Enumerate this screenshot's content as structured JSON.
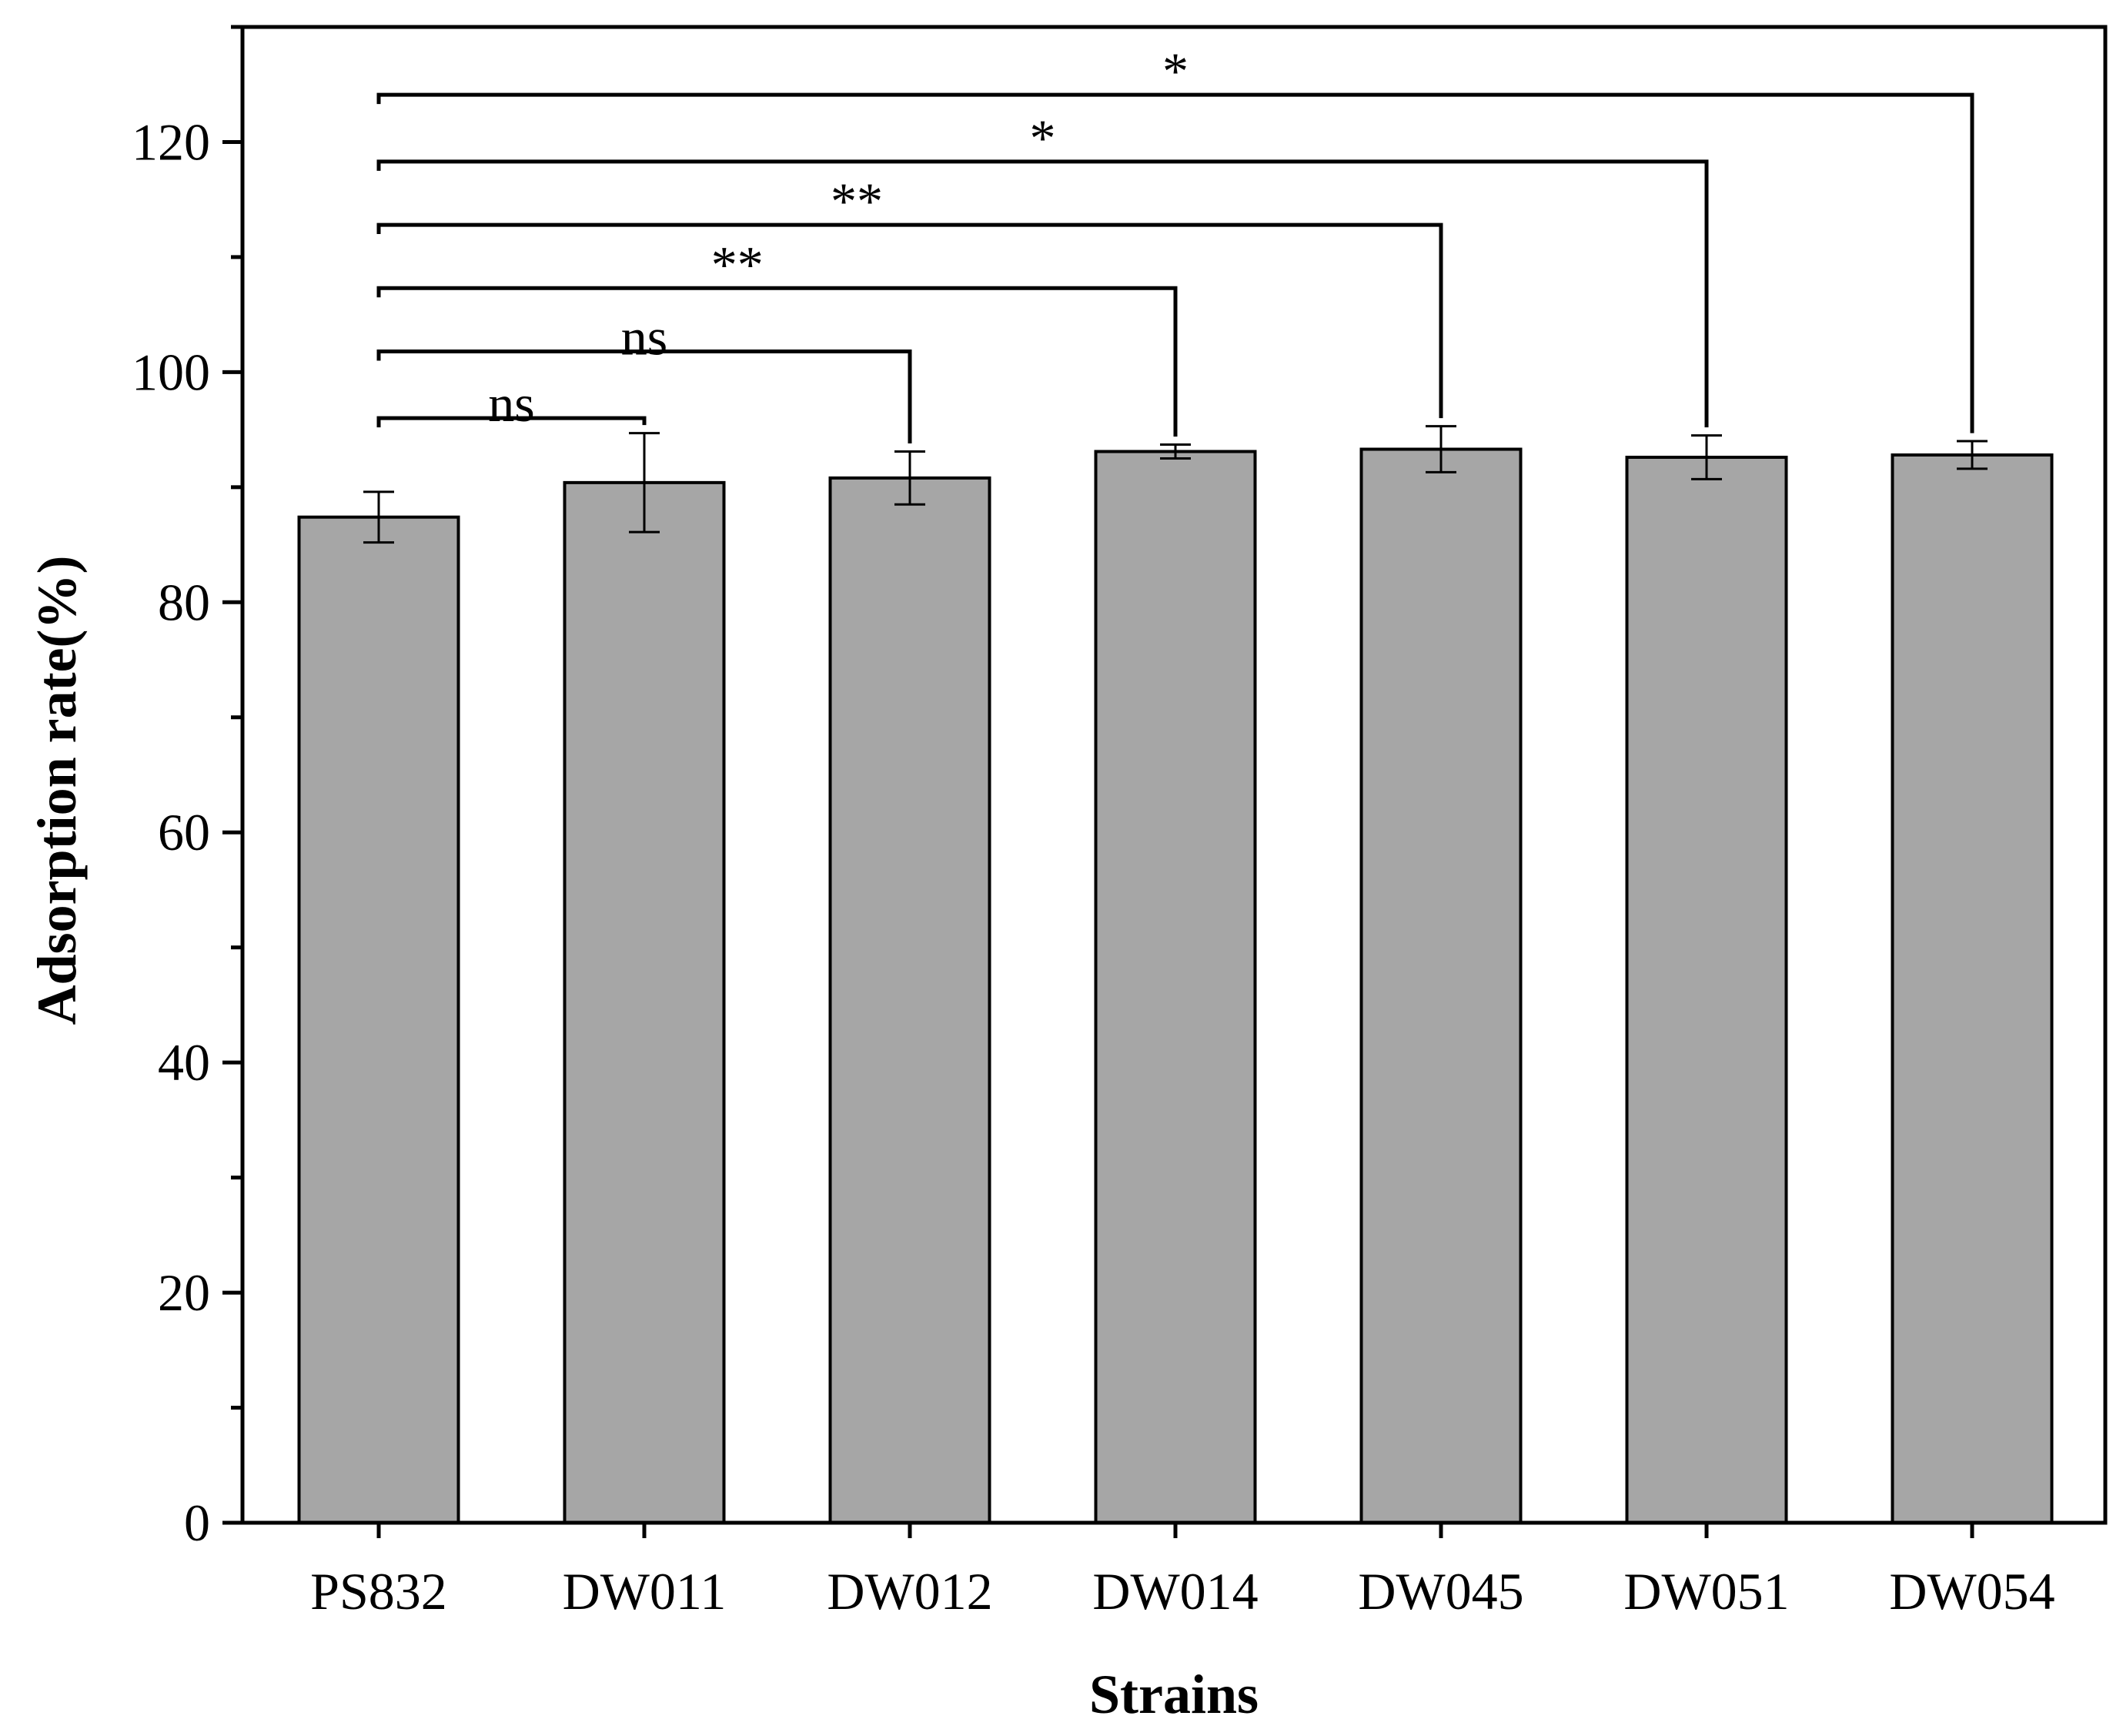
{
  "chart_data": {
    "type": "bar",
    "title": "",
    "xlabel": "Strains",
    "ylabel": "Adsorption rate(%)",
    "ylim": [
      0,
      130
    ],
    "yticks": [
      0,
      20,
      40,
      60,
      80,
      100,
      120
    ],
    "grid": false,
    "legend": "none",
    "bar_color": "#a6a6a6",
    "categories": [
      "PS832",
      "DW011",
      "DW012",
      "DW014",
      "DW045",
      "DW051",
      "DW054"
    ],
    "values": [
      87.4,
      90.4,
      90.8,
      93.1,
      93.3,
      92.6,
      92.8
    ],
    "errors": [
      2.2,
      4.3,
      2.3,
      0.6,
      2.0,
      1.9,
      1.2
    ],
    "comparisons": [
      {
        "from": "PS832",
        "to": "DW011",
        "level": 96,
        "label": "ns"
      },
      {
        "from": "PS832",
        "to": "DW012",
        "level": 101.8,
        "label": "ns"
      },
      {
        "from": "PS832",
        "to": "DW014",
        "level": 107.3,
        "label": "**"
      },
      {
        "from": "PS832",
        "to": "DW045",
        "level": 112.8,
        "label": "**"
      },
      {
        "from": "PS832",
        "to": "DW051",
        "level": 118.3,
        "label": "*"
      },
      {
        "from": "PS832",
        "to": "DW054",
        "level": 124.1,
        "label": "*"
      }
    ]
  }
}
